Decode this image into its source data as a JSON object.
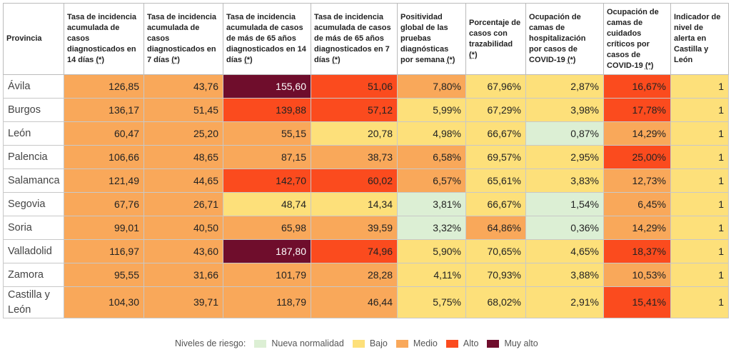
{
  "table": {
    "headers": [
      {
        "label": "Provincia"
      },
      {
        "label": "Tasa de incidencia acumulada de casos diagnosticados en 14 días",
        "note": "(*)"
      },
      {
        "label": "Tasa de incidencia acumulada de casos diagnosticados en 7 días",
        "note": "(*)"
      },
      {
        "label": "Tasa de incidencia acumulada de casos de más de 65 años diagnosticados en 14 días",
        "note": "(*)"
      },
      {
        "label": "Tasa de incidencia acumulada de casos de más de 65 años diagnosticados en 7 días",
        "note": "(*)"
      },
      {
        "label": "Positividad global de las pruebas diagnósticas por semana",
        "note": "(*)"
      },
      {
        "label": "Porcentaje de casos con trazabilidad",
        "note": "(*)"
      },
      {
        "label": "Ocupación de camas de hospitalización por casos de COVID-19",
        "note": "(*)"
      },
      {
        "label": "Ocupación de camas de cuidados críticos por casos de COVID-19",
        "note": "(*)"
      },
      {
        "label": "Indicador de nivel de alerta en Castilla y León"
      }
    ],
    "rows": [
      {
        "province": "Ávila",
        "cells": [
          "126,85",
          "43,76",
          "155,60",
          "51,06",
          "7,80%",
          "67,96%",
          "2,87%",
          "16,67%",
          "1"
        ],
        "colors": [
          "#f9a85a",
          "#f9a85a",
          "#6f0d2c",
          "#fb4b1e",
          "#f9a85a",
          "#fde07a",
          "#fde07a",
          "#fb4b1e",
          "#fde07a"
        ]
      },
      {
        "province": "Burgos",
        "cells": [
          "136,17",
          "51,45",
          "139,88",
          "57,12",
          "5,99%",
          "67,29%",
          "3,98%",
          "17,78%",
          "1"
        ],
        "colors": [
          "#f9a85a",
          "#f9a85a",
          "#fb4b1e",
          "#fb4b1e",
          "#fde07a",
          "#fde07a",
          "#fde07a",
          "#fb4b1e",
          "#fde07a"
        ]
      },
      {
        "province": "León",
        "cells": [
          "60,47",
          "25,20",
          "55,15",
          "20,78",
          "4,98%",
          "66,67%",
          "0,87%",
          "14,29%",
          "1"
        ],
        "colors": [
          "#f9a85a",
          "#f9a85a",
          "#f9a85a",
          "#fde07a",
          "#fde07a",
          "#fde07a",
          "#dcefd4",
          "#f9a85a",
          "#fde07a"
        ]
      },
      {
        "province": "Palencia",
        "cells": [
          "106,66",
          "48,65",
          "87,15",
          "38,73",
          "6,58%",
          "69,57%",
          "2,95%",
          "25,00%",
          "1"
        ],
        "colors": [
          "#f9a85a",
          "#f9a85a",
          "#f9a85a",
          "#f9a85a",
          "#f9a85a",
          "#fde07a",
          "#fde07a",
          "#fb4b1e",
          "#fde07a"
        ]
      },
      {
        "province": "Salamanca",
        "cells": [
          "121,49",
          "44,65",
          "142,70",
          "60,02",
          "6,57%",
          "65,61%",
          "3,83%",
          "12,73%",
          "1"
        ],
        "colors": [
          "#f9a85a",
          "#f9a85a",
          "#fb4b1e",
          "#fb4b1e",
          "#f9a85a",
          "#fde07a",
          "#fde07a",
          "#f9a85a",
          "#fde07a"
        ]
      },
      {
        "province": "Segovia",
        "cells": [
          "67,76",
          "26,71",
          "48,74",
          "14,34",
          "3,81%",
          "66,67%",
          "1,54%",
          "6,45%",
          "1"
        ],
        "colors": [
          "#f9a85a",
          "#f9a85a",
          "#fde07a",
          "#fde07a",
          "#dcefd4",
          "#fde07a",
          "#dcefd4",
          "#f9a85a",
          "#fde07a"
        ]
      },
      {
        "province": "Soria",
        "cells": [
          "99,01",
          "40,50",
          "65,98",
          "39,59",
          "3,32%",
          "64,86%",
          "0,36%",
          "14,29%",
          "1"
        ],
        "colors": [
          "#f9a85a",
          "#f9a85a",
          "#f9a85a",
          "#f9a85a",
          "#dcefd4",
          "#f9a85a",
          "#dcefd4",
          "#f9a85a",
          "#fde07a"
        ]
      },
      {
        "province": "Valladolid",
        "cells": [
          "116,97",
          "43,60",
          "187,80",
          "74,96",
          "5,90%",
          "70,65%",
          "4,65%",
          "18,37%",
          "1"
        ],
        "colors": [
          "#f9a85a",
          "#f9a85a",
          "#6f0d2c",
          "#fb4b1e",
          "#fde07a",
          "#fde07a",
          "#fde07a",
          "#fb4b1e",
          "#fde07a"
        ]
      },
      {
        "province": "Zamora",
        "cells": [
          "95,55",
          "31,66",
          "101,79",
          "28,28",
          "4,11%",
          "70,93%",
          "3,88%",
          "10,53%",
          "1"
        ],
        "colors": [
          "#f9a85a",
          "#f9a85a",
          "#f9a85a",
          "#f9a85a",
          "#fde07a",
          "#fde07a",
          "#fde07a",
          "#f9a85a",
          "#fde07a"
        ]
      },
      {
        "province": "Castilla y León",
        "cells": [
          "104,30",
          "39,71",
          "118,79",
          "46,44",
          "5,75%",
          "68,02%",
          "2,91%",
          "15,41%",
          "1"
        ],
        "colors": [
          "#f9a85a",
          "#f9a85a",
          "#f9a85a",
          "#f9a85a",
          "#fde07a",
          "#fde07a",
          "#fde07a",
          "#fb4b1e",
          "#fde07a"
        ]
      }
    ]
  },
  "legend": {
    "title": "Niveles de riesgo:",
    "items": [
      {
        "label": "Nueva normalidad",
        "color": "#dcefd4"
      },
      {
        "label": "Bajo",
        "color": "#fde07a"
      },
      {
        "label": "Medio",
        "color": "#f9a85a"
      },
      {
        "label": "Alto",
        "color": "#fb4b1e"
      },
      {
        "label": "Muy alto",
        "color": "#6f0d2c"
      }
    ]
  }
}
